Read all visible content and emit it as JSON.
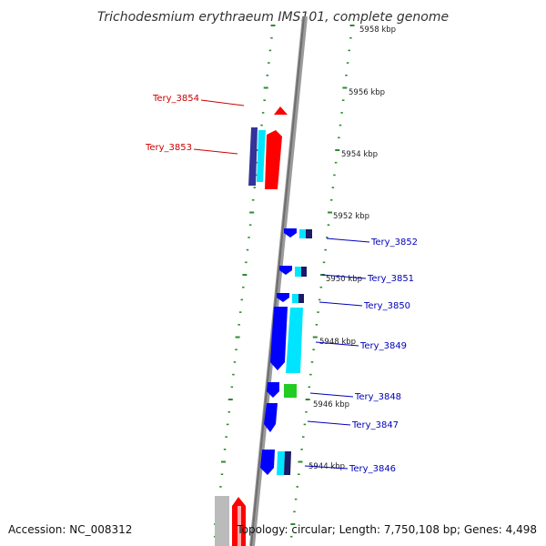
{
  "title": "Trichodesmium erythraeum IMS101, complete genome",
  "footer": {
    "accession": "Accession: NC_008312",
    "topology": "Topology: circular; Length: 7,750,108 bp; Genes: 4,498"
  },
  "colors": {
    "forward_label": "#cc0000",
    "reverse_label": "#0000bb",
    "tick": "#2e8b2e",
    "backbone": "#7a7a7a",
    "forward_gene": "#ff0000",
    "reverse_gene": "#0000ff",
    "cyan": "#00e5ff",
    "green": "#22cc22",
    "navy": "#1a1a66"
  },
  "kbp_labels": [
    {
      "label": "5958 kbp",
      "value": 5958
    },
    {
      "label": "5956 kbp",
      "value": 5956
    },
    {
      "label": "5954 kbp",
      "value": 5954
    },
    {
      "label": "5952 kbp",
      "value": 5952
    },
    {
      "label": "5950 kbp",
      "value": 5950
    },
    {
      "label": "5948 kbp",
      "value": 5948
    },
    {
      "label": "5946 kbp",
      "value": 5946
    },
    {
      "label": "5944 kbp",
      "value": 5944
    }
  ],
  "genes": [
    {
      "name": "Tery_3854",
      "strand": "forward"
    },
    {
      "name": "Tery_3853",
      "strand": "forward"
    },
    {
      "name": "Tery_3852",
      "strand": "reverse"
    },
    {
      "name": "Tery_3851",
      "strand": "reverse"
    },
    {
      "name": "Tery_3850",
      "strand": "reverse"
    },
    {
      "name": "Tery_3849",
      "strand": "reverse"
    },
    {
      "name": "Tery_3848",
      "strand": "reverse"
    },
    {
      "name": "Tery_3847",
      "strand": "reverse"
    },
    {
      "name": "Tery_3846",
      "strand": "reverse"
    }
  ]
}
